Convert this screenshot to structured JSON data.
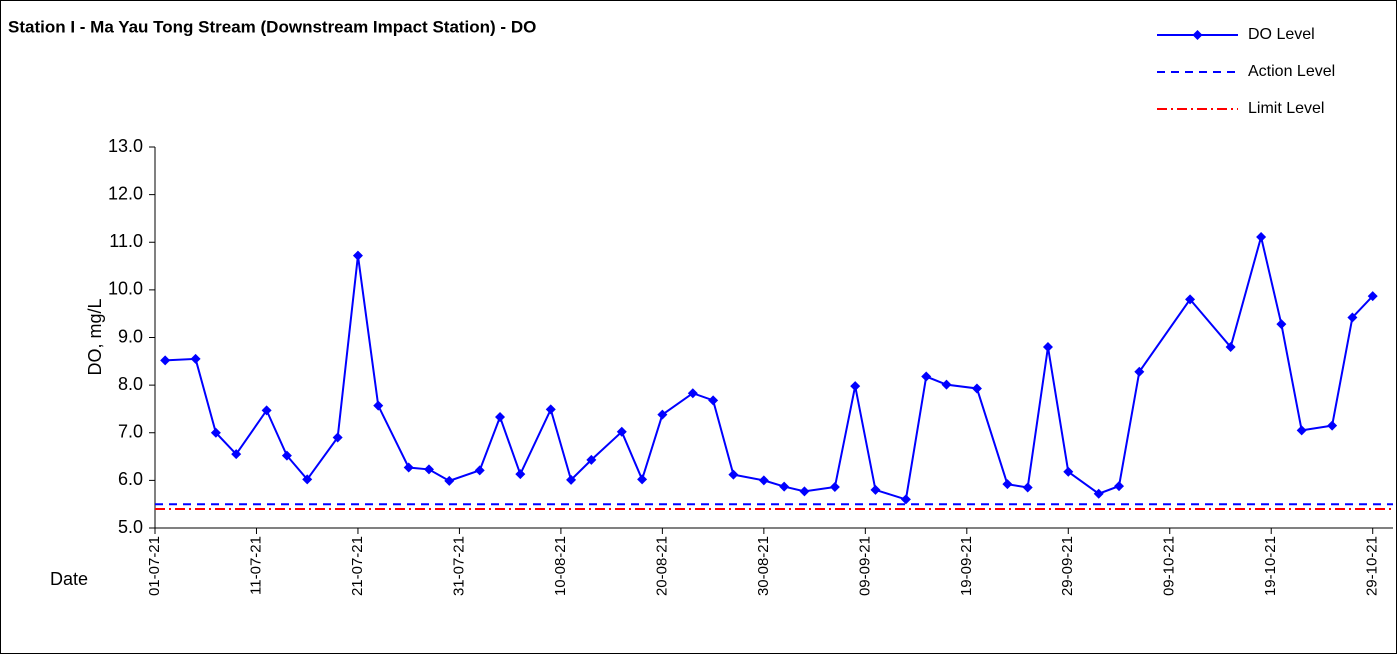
{
  "chart_data": {
    "type": "line",
    "title": "Station I - Ma Yau Tong Stream (Downstream Impact Station) - DO",
    "y_label": "DO, mg/L",
    "x_label": "Date",
    "x": [
      "2021-07-02",
      "2021-07-05",
      "2021-07-07",
      "2021-07-09",
      "2021-07-12",
      "2021-07-14",
      "2021-07-16",
      "2021-07-19",
      "2021-07-21",
      "2021-07-23",
      "2021-07-26",
      "2021-07-28",
      "2021-07-30",
      "2021-08-02",
      "2021-08-04",
      "2021-08-06",
      "2021-08-09",
      "2021-08-11",
      "2021-08-13",
      "2021-08-16",
      "2021-08-18",
      "2021-08-20",
      "2021-08-23",
      "2021-08-25",
      "2021-08-27",
      "2021-08-30",
      "2021-09-01",
      "2021-09-03",
      "2021-09-06",
      "2021-09-08",
      "2021-09-10",
      "2021-09-13",
      "2021-09-15",
      "2021-09-17",
      "2021-09-20",
      "2021-09-23",
      "2021-09-25",
      "2021-09-27",
      "2021-09-29",
      "2021-10-02",
      "2021-10-04",
      "2021-10-06",
      "2021-10-11",
      "2021-10-15",
      "2021-10-18",
      "2021-10-20",
      "2021-10-22",
      "2021-10-25",
      "2021-10-27",
      "2021-10-29"
    ],
    "series": [
      {
        "name": "DO Level",
        "color": "#0000ff",
        "values": [
          8.52,
          8.55,
          7.0,
          6.55,
          7.47,
          6.52,
          6.02,
          6.9,
          10.72,
          7.57,
          6.27,
          6.23,
          5.99,
          6.21,
          7.33,
          6.13,
          7.49,
          6.01,
          6.43,
          7.02,
          6.02,
          7.38,
          7.83,
          7.68,
          6.12,
          6.0,
          5.87,
          5.77,
          5.86,
          7.98,
          5.8,
          5.6,
          8.18,
          8.01,
          7.93,
          5.92,
          5.85,
          8.8,
          6.18,
          5.72,
          5.88,
          8.28,
          9.8,
          8.8,
          11.11,
          9.28,
          7.05,
          7.15,
          9.42,
          9.87
        ]
      }
    ],
    "reference_lines": [
      {
        "name": "Action Level",
        "value": 5.5,
        "color": "#0000ff",
        "style": "dashed"
      },
      {
        "name": "Limit Level",
        "value": 5.4,
        "color": "#ff0000",
        "style": "dashdot"
      }
    ],
    "xlim": [
      "2021-07-01",
      "2021-10-31"
    ],
    "xticks": [
      {
        "value": "2021-07-01",
        "label": "01-07-21"
      },
      {
        "value": "2021-07-11",
        "label": "11-07-21"
      },
      {
        "value": "2021-07-21",
        "label": "21-07-21"
      },
      {
        "value": "2021-07-31",
        "label": "31-07-21"
      },
      {
        "value": "2021-08-10",
        "label": "10-08-21"
      },
      {
        "value": "2021-08-20",
        "label": "20-08-21"
      },
      {
        "value": "2021-08-30",
        "label": "30-08-21"
      },
      {
        "value": "2021-09-09",
        "label": "09-09-21"
      },
      {
        "value": "2021-09-19",
        "label": "19-09-21"
      },
      {
        "value": "2021-09-29",
        "label": "29-09-21"
      },
      {
        "value": "2021-10-09",
        "label": "09-10-21"
      },
      {
        "value": "2021-10-19",
        "label": "19-10-21"
      },
      {
        "value": "2021-10-29",
        "label": "29-10-21"
      }
    ],
    "ylim": [
      5,
      13
    ],
    "yticks": [
      {
        "value": 5,
        "label": "5.0"
      },
      {
        "value": 6,
        "label": "6.0"
      },
      {
        "value": 7,
        "label": "7.0"
      },
      {
        "value": 8,
        "label": "8.0"
      },
      {
        "value": 9,
        "label": "9.0"
      },
      {
        "value": 10,
        "label": "10.0"
      },
      {
        "value": 11,
        "label": "11.0"
      },
      {
        "value": 12,
        "label": "12.0"
      },
      {
        "value": 13,
        "label": "13.0"
      }
    ],
    "legend": "top-right"
  }
}
